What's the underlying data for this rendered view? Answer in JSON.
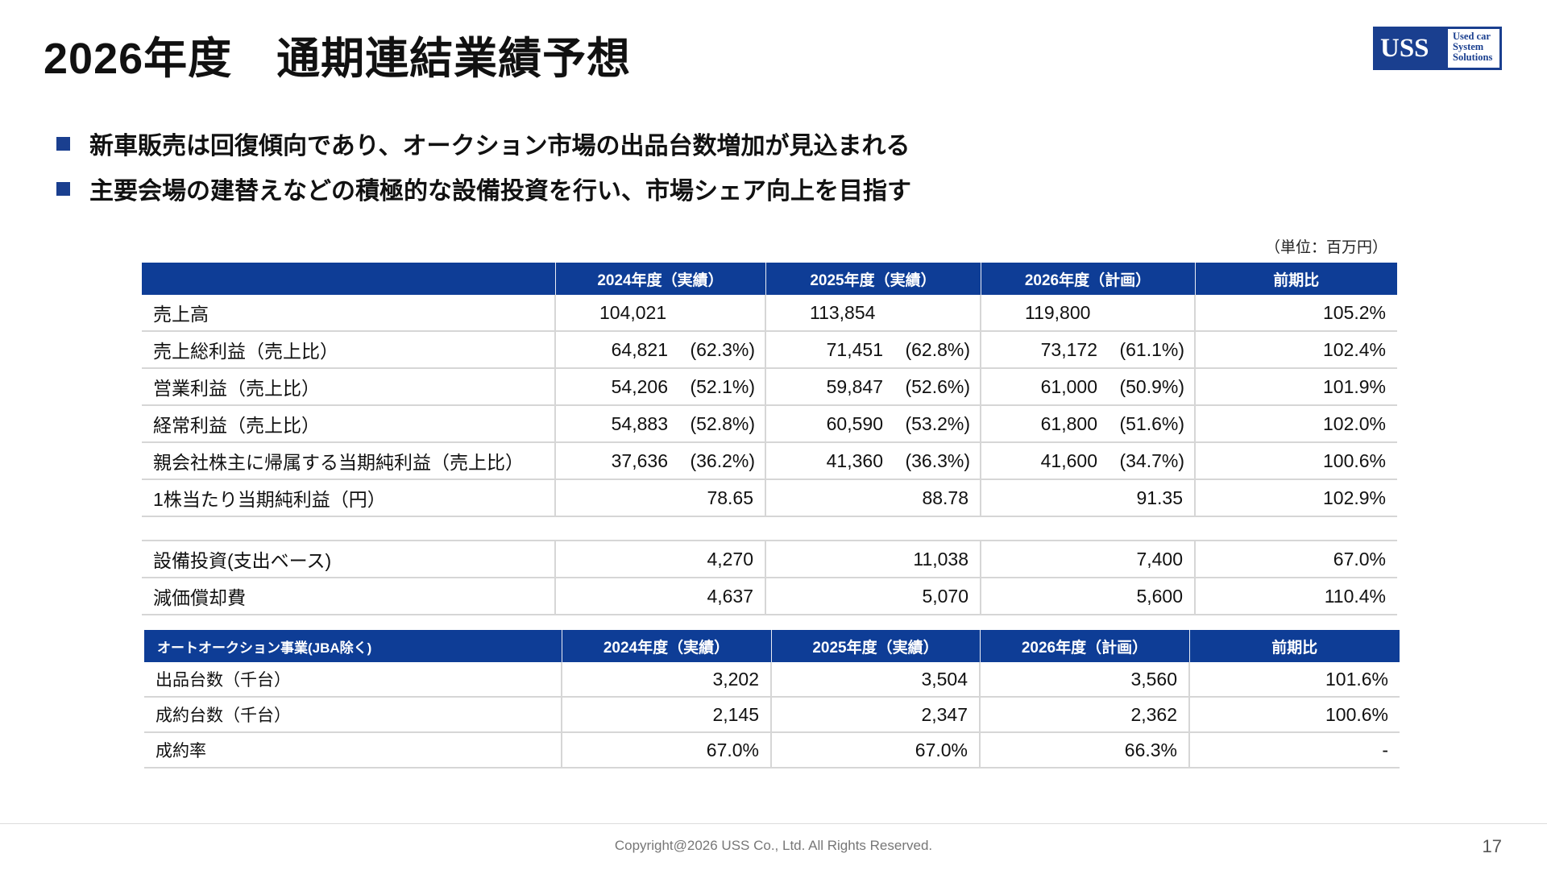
{
  "title": "2026年度　通期連結業績予想",
  "logo": {
    "main": "USS",
    "sub": [
      "Used car",
      "System",
      "Solutions"
    ]
  },
  "bullets": [
    "新車販売は回復傾向であり、オークション市場の出品台数増加が見込まれる",
    "主要会場の建替えなどの積極的な設備投資を行い、市場シェア向上を目指す"
  ],
  "unit_note": "（単位：百万円）",
  "table1": {
    "headers": [
      "",
      "2024年度（実績）",
      "2025年度（実績）",
      "2026年度（計画）",
      "前期比"
    ],
    "rows": [
      {
        "label": "売上高",
        "v2024": "104,021",
        "p2024": "",
        "v2025": "113,854",
        "p2025": "",
        "v2026": "119,800",
        "p2026": "",
        "ratio": "105.2%"
      },
      {
        "label": "売上総利益（売上比）",
        "v2024": "64,821",
        "p2024": "(62.3%)",
        "v2025": "71,451",
        "p2025": "(62.8%)",
        "v2026": "73,172",
        "p2026": "(61.1%)",
        "ratio": "102.4%"
      },
      {
        "label": "営業利益（売上比）",
        "v2024": "54,206",
        "p2024": "(52.1%)",
        "v2025": "59,847",
        "p2025": "(52.6%)",
        "v2026": "61,000",
        "p2026": "(50.9%)",
        "ratio": "101.9%"
      },
      {
        "label": "経常利益（売上比）",
        "v2024": "54,883",
        "p2024": "(52.8%)",
        "v2025": "60,590",
        "p2025": "(53.2%)",
        "v2026": "61,800",
        "p2026": "(51.6%)",
        "ratio": "102.0%"
      },
      {
        "label": "親会社株主に帰属する当期純利益（売上比）",
        "v2024": "37,636",
        "p2024": "(36.2%)",
        "v2025": "41,360",
        "p2025": "(36.3%)",
        "v2026": "41,600",
        "p2026": "(34.7%)",
        "ratio": "100.6%"
      },
      {
        "label": "1株当たり当期純利益（円）",
        "v2024": "78.65",
        "v2025": "88.78",
        "v2026": "91.35",
        "ratio": "102.9%"
      }
    ],
    "capex_rows": [
      {
        "label": "設備投資(支出ベース)",
        "v2024": "4,270",
        "v2025": "11,038",
        "v2026": "7,400",
        "ratio": "67.0%"
      },
      {
        "label": "減価償却費",
        "v2024": "4,637",
        "v2025": "5,070",
        "v2026": "5,600",
        "ratio": "110.4%"
      }
    ]
  },
  "table2": {
    "headers": [
      "オートオークション事業(JBA除く)",
      "2024年度（実績）",
      "2025年度（実績）",
      "2026年度（計画）",
      "前期比"
    ],
    "rows": [
      {
        "label": "出品台数（千台）",
        "v2024": "3,202",
        "v2025": "3,504",
        "v2026": "3,560",
        "ratio": "101.6%"
      },
      {
        "label": "成約台数（千台）",
        "v2024": "2,145",
        "v2025": "2,347",
        "v2026": "2,362",
        "ratio": "100.6%"
      },
      {
        "label": "成約率",
        "v2024": "67.0%",
        "v2025": "67.0%",
        "v2026": "66.3%",
        "ratio": "-"
      }
    ]
  },
  "footer": {
    "copyright": "Copyright@2026 USS Co., Ltd. All Rights Reserved.",
    "page": "17"
  }
}
